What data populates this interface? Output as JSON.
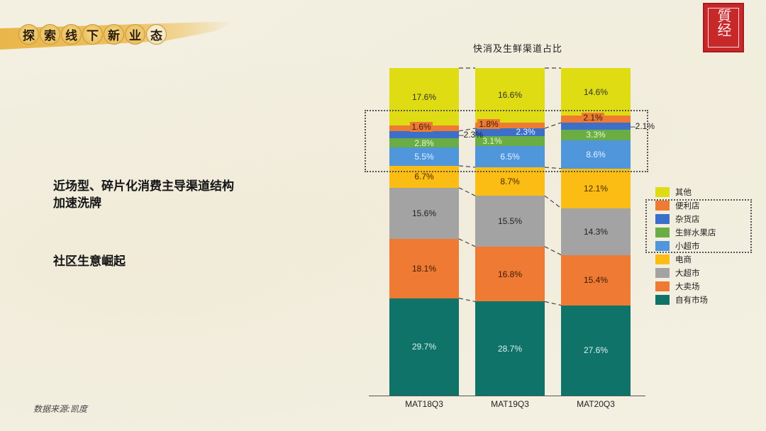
{
  "header": {
    "title_chars": [
      "探",
      "索",
      "线",
      "下",
      "新",
      "业",
      "态"
    ],
    "logo_text": "質经"
  },
  "bullets": [
    {
      "line1": "近场型、碎片化消费主导渠道结构",
      "line2": "加速洗牌"
    },
    {
      "line1": "社区生意崛起",
      "line2": ""
    }
  ],
  "source": "数据来源:凯度",
  "chart_data": {
    "type": "bar",
    "stacked": true,
    "title": "快消及生鲜渠道占比",
    "categories": [
      "MAT18Q3",
      "MAT19Q3",
      "MAT20Q3"
    ],
    "series": [
      {
        "name": "自有市场",
        "color": "#0f7369",
        "label_color": "#d9f2ee",
        "values": [
          29.7,
          28.7,
          27.6
        ]
      },
      {
        "name": "大卖场",
        "color": "#ee7a33",
        "label_color": "#3a1a0a",
        "values": [
          18.1,
          16.8,
          15.4
        ]
      },
      {
        "name": "大超市",
        "color": "#a3a3a3",
        "label_color": "#222222",
        "values": [
          15.6,
          15.5,
          14.3
        ]
      },
      {
        "name": "电商",
        "color": "#fbbd14",
        "label_color": "#4a2a00",
        "values": [
          6.7,
          8.7,
          12.1
        ]
      },
      {
        "name": "小超市",
        "color": "#4f96db",
        "label_color": "#e6f2ff",
        "values": [
          5.5,
          6.5,
          8.6
        ]
      },
      {
        "name": "生鲜水果店",
        "color": "#6aad45",
        "label_color": "#e8f8d0",
        "values": [
          2.8,
          3.1,
          3.3
        ]
      },
      {
        "name": "杂货店",
        "color": "#3b6fc9",
        "label_color": "#e6f2ff",
        "values": [
          2.3,
          2.3,
          2.1
        ]
      },
      {
        "name": "便利店",
        "color": "#ee7a33",
        "label_color": "#3a1a0a",
        "values": [
          1.6,
          1.8,
          2.1
        ]
      },
      {
        "name": "其他",
        "color": "#dfdc13",
        "label_color": "#333333",
        "values": [
          17.6,
          16.6,
          14.6
        ]
      }
    ],
    "legend": [
      "其他",
      "便利店",
      "杂货店",
      "生鲜水果店",
      "小超市",
      "电商",
      "大超市",
      "大卖场",
      "自有市场"
    ],
    "legend_position": "right",
    "highlight_box_series": [
      "便利店",
      "杂货店",
      "生鲜水果店",
      "小超市"
    ],
    "ylim": [
      0,
      100
    ],
    "grid": false,
    "xlabel": "",
    "ylabel": ""
  }
}
